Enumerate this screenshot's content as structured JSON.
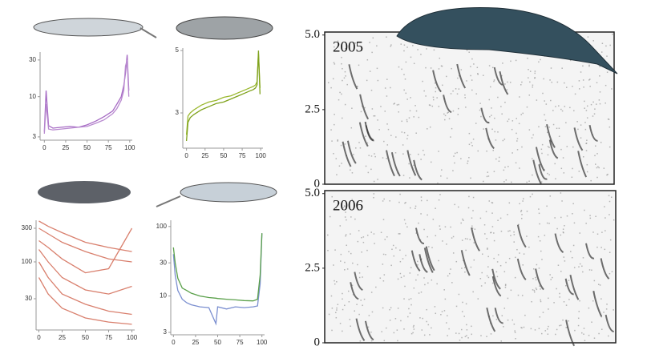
{
  "chart_data": [
    {
      "type": "line",
      "log_y": true,
      "xlim": [
        -5,
        103
      ],
      "ylim": [
        2.72,
        38
      ],
      "xticks": [
        0,
        25,
        50,
        75,
        100
      ],
      "yticks": [
        3,
        10,
        30
      ],
      "x": [
        0,
        2,
        5,
        10,
        20,
        30,
        40,
        50,
        60,
        70,
        80,
        85,
        90,
        93,
        95,
        97,
        99
      ],
      "series": [
        {
          "color": "#a66bc4",
          "values": [
            3.5,
            12,
            4.2,
            3.9,
            4.0,
            4.1,
            4.0,
            4.3,
            4.8,
            5.5,
            6.5,
            8,
            10,
            14,
            20,
            35,
            12
          ]
        },
        {
          "color": "#b98bd0",
          "values": [
            3.3,
            8,
            3.8,
            3.7,
            3.8,
            3.9,
            4.0,
            4.1,
            4.5,
            5,
            6,
            7,
            9,
            12,
            25,
            30,
            10
          ]
        }
      ]
    },
    {
      "type": "line",
      "log_y": false,
      "xlim": [
        -5,
        103
      ],
      "ylim": [
        1.87,
        5.08
      ],
      "xticks": [
        0,
        25,
        50,
        75,
        100
      ],
      "yticks": [
        3,
        5
      ],
      "x": [
        0,
        2,
        5,
        10,
        20,
        30,
        40,
        50,
        60,
        70,
        80,
        85,
        90,
        93,
        95,
        97,
        99
      ],
      "series": [
        {
          "color": "#9ab82e",
          "values": [
            2.3,
            2.9,
            3.0,
            3.1,
            3.25,
            3.35,
            3.4,
            3.5,
            3.55,
            3.65,
            3.75,
            3.8,
            3.85,
            3.9,
            4.0,
            4.9,
            3.8
          ]
        },
        {
          "color": "#7fa21c",
          "values": [
            2.1,
            2.7,
            2.85,
            2.95,
            3.1,
            3.2,
            3.3,
            3.35,
            3.45,
            3.55,
            3.65,
            3.7,
            3.75,
            3.8,
            3.9,
            5.0,
            3.6
          ]
        }
      ]
    },
    {
      "type": "line",
      "log_y": true,
      "xlim": [
        -3,
        103
      ],
      "ylim": [
        10.8,
        390
      ],
      "xticks": [
        0,
        25,
        50,
        75,
        100
      ],
      "yticks": [
        30,
        100,
        300
      ],
      "x": [
        0,
        10,
        25,
        50,
        75,
        100
      ],
      "series": [
        {
          "color": "#d9806e",
          "values": [
            380,
            320,
            260,
            190,
            160,
            140
          ]
        },
        {
          "color": "#d9806e",
          "values": [
            300,
            250,
            190,
            140,
            110,
            100
          ]
        },
        {
          "color": "#d9806e",
          "values": [
            200,
            160,
            110,
            70,
            80,
            300
          ]
        },
        {
          "color": "#d9806e",
          "values": [
            150,
            100,
            60,
            40,
            35,
            45
          ]
        },
        {
          "color": "#d9806e",
          "values": [
            100,
            60,
            35,
            25,
            20,
            18
          ]
        },
        {
          "color": "#d9806e",
          "values": [
            60,
            35,
            22,
            16,
            14,
            13
          ]
        }
      ]
    },
    {
      "type": "line",
      "log_y": true,
      "xlim": [
        -3,
        103
      ],
      "ylim": [
        2.77,
        123
      ],
      "xticks": [
        0,
        25,
        50,
        75,
        100
      ],
      "yticks": [
        3,
        10,
        30,
        100
      ],
      "x": [
        0,
        2,
        5,
        10,
        15,
        20,
        30,
        40,
        48,
        50,
        60,
        70,
        80,
        90,
        95,
        98,
        100
      ],
      "series": [
        {
          "color": "#7b8fd0",
          "values": [
            40,
            20,
            12,
            9,
            8,
            7.5,
            7,
            6.8,
            4,
            7,
            6.5,
            7,
            6.8,
            7,
            7.2,
            15,
            80
          ]
        },
        {
          "color": "#5aa04a",
          "values": [
            50,
            30,
            18,
            13,
            12,
            11,
            10,
            9.5,
            9.3,
            9.2,
            9,
            8.8,
            8.6,
            8.5,
            9,
            20,
            80
          ]
        }
      ]
    },
    {
      "type": "spectrogram",
      "title": "2005",
      "ylim": [
        0,
        5.1
      ],
      "yticks": [
        0,
        2.5,
        {
          "value": 5,
          "label": "5.0"
        }
      ]
    },
    {
      "type": "spectrogram",
      "title": "2006",
      "ylim": [
        0,
        5.1
      ],
      "yticks": [
        0,
        2.5,
        {
          "value": 5,
          "label": "5.0"
        }
      ]
    }
  ]
}
